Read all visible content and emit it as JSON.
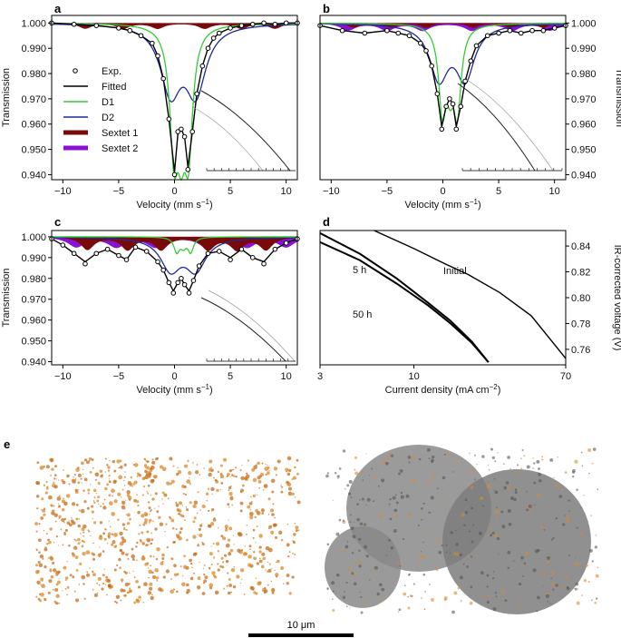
{
  "panel_labels": {
    "a": "a",
    "b": "b",
    "c": "c",
    "d": "d",
    "e": "e"
  },
  "mossbauer_axes": {
    "xlabel_main": "Velocity (mm s",
    "xlabel_exp": "−1",
    "xlabel_close": ")",
    "ylabel": "Transmission",
    "xticks": [
      "−10",
      "−5",
      "0",
      "5",
      "10"
    ],
    "yticks": [
      "1.000",
      "0.990",
      "0.980",
      "0.970",
      "0.960",
      "0.950",
      "0.940"
    ]
  },
  "legend": {
    "items": [
      {
        "label": "Exp.",
        "color": "#000000",
        "kind": "marker"
      },
      {
        "label": "Fitted",
        "color": "#000000",
        "kind": "line"
      },
      {
        "label": "D1",
        "color": "#33cc33",
        "kind": "line"
      },
      {
        "label": "D2",
        "color": "#1f2a9c",
        "kind": "line"
      },
      {
        "label": "Sextet 1",
        "color": "#7a0a0a",
        "kind": "thick"
      },
      {
        "label": "Sextet 2",
        "color": "#8b10d6",
        "kind": "thick"
      }
    ]
  },
  "panel_d": {
    "xlabel_main": "Current density (mA cm",
    "xlabel_exp": "−2",
    "xlabel_close": ")",
    "ylabel": "IR-corrected voltage (V)",
    "xticks": [
      "3",
      "10",
      "70"
    ],
    "yticks": [
      "0.84",
      "0.82",
      "0.80",
      "0.78",
      "0.76"
    ],
    "annotations": [
      "5 h",
      "Initial",
      "50 h"
    ]
  },
  "scale_bar": {
    "label": "10 μm"
  },
  "chart_data": [
    {
      "panel": "a",
      "type": "line",
      "xlabel": "Velocity (mm s−1)",
      "ylabel": "Transmission",
      "xlim": [
        -11,
        11
      ],
      "ylim": [
        0.938,
        1.003
      ],
      "series": [
        {
          "name": "Exp.",
          "marker": "circle",
          "x": [
            -11,
            -9,
            -7,
            -5,
            -4,
            -3,
            -2,
            -1.5,
            -1,
            -0.5,
            0,
            0.3,
            0.6,
            0.9,
            1.2,
            1.6,
            2,
            2.5,
            3,
            3.5,
            4,
            5,
            6,
            7,
            8,
            9,
            10,
            11
          ],
          "y": [
            1.0,
            0.9995,
            0.999,
            0.998,
            0.997,
            0.995,
            0.992,
            0.987,
            0.978,
            0.962,
            0.94,
            0.957,
            0.958,
            0.955,
            0.942,
            0.957,
            0.972,
            0.983,
            0.99,
            0.994,
            0.996,
            0.998,
            0.999,
            0.9995,
            1.0,
            0.9995,
            1.0,
            1.0
          ]
        },
        {
          "name": "Fitted",
          "x": [
            -11,
            -9,
            -7,
            -5,
            -4,
            -3,
            -2,
            -1.5,
            -1,
            -0.5,
            0,
            0.3,
            0.6,
            0.9,
            1.2,
            1.6,
            2,
            2.5,
            3,
            3.5,
            4,
            5,
            6,
            7,
            8,
            9,
            10,
            11
          ],
          "y": [
            1.0,
            0.9995,
            0.999,
            0.998,
            0.997,
            0.995,
            0.992,
            0.987,
            0.978,
            0.962,
            0.941,
            0.956,
            0.958,
            0.955,
            0.943,
            0.957,
            0.972,
            0.983,
            0.99,
            0.994,
            0.996,
            0.998,
            0.999,
            0.9995,
            1.0,
            0.9995,
            1.0,
            1.0
          ]
        },
        {
          "name": "D1",
          "type": "doublet",
          "centers": [
            -0.05,
            0.6,
            1.25
          ],
          "depths": [
            0.045,
            0.033,
            0.045
          ],
          "width": 0.55
        },
        {
          "name": "D2",
          "type": "doublet",
          "centers": [
            -0.35,
            1.9
          ],
          "depths": [
            0.026,
            0.026
          ],
          "width": 1.1
        },
        {
          "name": "Sextet 1",
          "type": "sextet",
          "area": "small"
        },
        {
          "name": "Sextet 2",
          "type": "sextet",
          "area": "none"
        }
      ]
    },
    {
      "panel": "b",
      "type": "line",
      "xlabel": "Velocity (mm s−1)",
      "ylabel": "Transmission",
      "xlim": [
        -11,
        11
      ],
      "ylim": [
        0.938,
        1.003
      ],
      "series": [
        {
          "name": "Exp.",
          "marker": "circle",
          "x": [
            -11,
            -9,
            -7,
            -5,
            -4,
            -3,
            -2,
            -1.5,
            -1,
            -0.5,
            -0.1,
            0.3,
            0.6,
            0.9,
            1.2,
            1.6,
            2,
            2.5,
            3,
            4,
            5,
            6,
            7,
            8,
            9,
            10,
            11
          ],
          "y": [
            0.999,
            0.997,
            0.996,
            0.997,
            0.996,
            0.995,
            0.992,
            0.989,
            0.983,
            0.972,
            0.958,
            0.967,
            0.97,
            0.968,
            0.958,
            0.967,
            0.977,
            0.985,
            0.991,
            0.995,
            0.996,
            0.997,
            0.996,
            0.997,
            0.997,
            0.998,
            0.999
          ]
        },
        {
          "name": "Fitted",
          "x": [
            -11,
            -9,
            -7,
            -5,
            -4,
            -3,
            -2,
            -1.5,
            -1,
            -0.5,
            -0.1,
            0.3,
            0.6,
            0.9,
            1.2,
            1.6,
            2,
            2.5,
            3,
            4,
            5,
            6,
            7,
            8,
            9,
            10,
            11
          ],
          "y": [
            0.999,
            0.997,
            0.996,
            0.997,
            0.996,
            0.995,
            0.992,
            0.989,
            0.983,
            0.972,
            0.959,
            0.967,
            0.97,
            0.968,
            0.959,
            0.967,
            0.977,
            0.985,
            0.991,
            0.995,
            0.996,
            0.997,
            0.996,
            0.997,
            0.997,
            0.998,
            0.999
          ]
        },
        {
          "name": "D1",
          "type": "doublet"
        },
        {
          "name": "D2",
          "type": "doublet"
        },
        {
          "name": "Sextet 1",
          "type": "sextet"
        },
        {
          "name": "Sextet 2",
          "type": "sextet"
        }
      ]
    },
    {
      "panel": "c",
      "type": "line",
      "xlabel": "Velocity (mm s−1)",
      "ylabel": "Transmission",
      "xlim": [
        -11,
        11
      ],
      "ylim": [
        0.938,
        1.003
      ],
      "series": [
        {
          "name": "Exp.",
          "marker": "circle",
          "x": [
            -11,
            -10,
            -9,
            -8,
            -7,
            -6,
            -5,
            -4.3,
            -3.5,
            -2.5,
            -1.5,
            -1,
            -0.5,
            -0.1,
            0.3,
            0.6,
            0.9,
            1.3,
            1.7,
            2.2,
            3,
            4,
            5,
            6,
            7,
            8,
            9,
            10,
            11
          ],
          "y": [
            0.999,
            0.996,
            0.992,
            0.987,
            0.992,
            0.994,
            0.991,
            0.989,
            0.995,
            0.993,
            0.988,
            0.984,
            0.978,
            0.973,
            0.978,
            0.98,
            0.977,
            0.973,
            0.979,
            0.986,
            0.992,
            0.993,
            0.989,
            0.994,
            0.99,
            0.987,
            0.994,
            0.997,
            0.999
          ]
        },
        {
          "name": "Fitted",
          "x": [
            -11,
            -10,
            -9,
            -8,
            -7,
            -6,
            -5,
            -4.3,
            -3.5,
            -2.5,
            -1.5,
            -1,
            -0.5,
            -0.1,
            0.3,
            0.6,
            0.9,
            1.3,
            1.7,
            2.2,
            3,
            4,
            5,
            6,
            7,
            8,
            9,
            10,
            11
          ],
          "y": [
            0.999,
            0.996,
            0.992,
            0.988,
            0.992,
            0.994,
            0.991,
            0.989,
            0.995,
            0.993,
            0.988,
            0.984,
            0.978,
            0.974,
            0.978,
            0.98,
            0.977,
            0.974,
            0.979,
            0.986,
            0.992,
            0.993,
            0.99,
            0.994,
            0.99,
            0.988,
            0.994,
            0.997,
            0.999
          ]
        },
        {
          "name": "D1",
          "type": "doublet"
        },
        {
          "name": "D2",
          "type": "doublet"
        },
        {
          "name": "Sextet 1",
          "type": "sextet"
        },
        {
          "name": "Sextet 2",
          "type": "sextet"
        }
      ]
    },
    {
      "panel": "d",
      "type": "line",
      "xscale": "log",
      "xlabel": "Current density (mA cm−2)",
      "ylabel": "IR-corrected voltage (V)",
      "xlim": [
        3,
        70
      ],
      "ylim": [
        0.75,
        0.85
      ],
      "series": [
        {
          "name": "Initial",
          "x": [
            6.0,
            10,
            15,
            20,
            30,
            45,
            70
          ],
          "y": [
            0.852,
            0.838,
            0.826,
            0.818,
            0.804,
            0.786,
            0.753
          ]
        },
        {
          "name": "5 h",
          "x": [
            3.0,
            5,
            8,
            12,
            16,
            21,
            26
          ],
          "y": [
            0.85,
            0.834,
            0.815,
            0.796,
            0.782,
            0.766,
            0.75
          ]
        },
        {
          "name": "50 h",
          "x": [
            3.0,
            5,
            8,
            12,
            16,
            21,
            26
          ],
          "y": [
            0.843,
            0.829,
            0.811,
            0.794,
            0.78,
            0.765,
            0.75
          ]
        }
      ]
    }
  ]
}
